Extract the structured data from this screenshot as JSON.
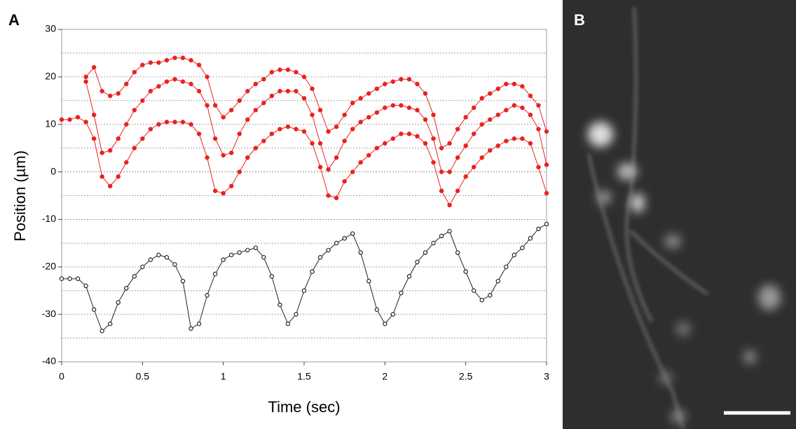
{
  "chart_data": {
    "type": "line",
    "panel_labels": [
      "A",
      "B"
    ],
    "xlabel": "Time (sec)",
    "ylabel": "Position (µm)",
    "x": [
      0,
      0.05,
      0.1,
      0.15,
      0.2,
      0.25,
      0.3,
      0.35,
      0.4,
      0.45,
      0.5,
      0.55,
      0.6,
      0.65,
      0.7,
      0.75,
      0.8,
      0.85,
      0.9,
      0.95,
      1,
      1.05,
      1.1,
      1.15,
      1.2,
      1.25,
      1.3,
      1.35,
      1.4,
      1.45,
      1.5,
      1.55,
      1.6,
      1.65,
      1.7,
      1.75,
      1.8,
      1.85,
      1.9,
      1.95,
      2,
      2.05,
      2.1,
      2.15,
      2.2,
      2.25,
      2.3,
      2.35,
      2.4,
      2.45,
      2.5,
      2.55,
      2.6,
      2.65,
      2.7,
      2.75,
      2.8,
      2.85,
      2.9,
      2.95,
      3
    ],
    "series": [
      {
        "color": "#e8231f",
        "marker": "filled",
        "values": [
          null,
          null,
          null,
          20,
          22,
          17,
          16,
          16.5,
          18.5,
          21,
          22.5,
          23,
          23,
          23.5,
          24,
          24,
          23.5,
          22.5,
          20,
          14,
          11.5,
          13,
          15,
          17,
          18.5,
          19.5,
          21,
          21.5,
          21.5,
          21,
          20,
          17.5,
          13,
          8.5,
          9.5,
          12,
          14.5,
          15.5,
          16.5,
          17.5,
          18.5,
          19,
          19.5,
          19.5,
          18.5,
          16.5,
          12,
          5,
          6,
          9,
          11.5,
          13.5,
          15.5,
          16.5,
          17.5,
          18.5,
          18.5,
          18,
          16,
          14,
          8.5
        ]
      },
      {
        "color": "#e8231f",
        "marker": "filled",
        "values": [
          null,
          null,
          null,
          19,
          12,
          4,
          4.5,
          7,
          10,
          13,
          15,
          17,
          18,
          19,
          19.5,
          19,
          18.5,
          17,
          14,
          7,
          3.5,
          4,
          8,
          11,
          13,
          14.5,
          16,
          17,
          17,
          17,
          15.5,
          12,
          6,
          0.5,
          3,
          6.5,
          9,
          10.5,
          11.5,
          12.5,
          13.5,
          14,
          14,
          13.5,
          13,
          11,
          7,
          0,
          0,
          3,
          5.5,
          8,
          10,
          11,
          12,
          13,
          14,
          13.5,
          12,
          9,
          1.5
        ]
      },
      {
        "color": "#e8231f",
        "marker": "filled",
        "values": [
          11,
          11,
          11.5,
          10.5,
          7,
          -1,
          -3,
          -1,
          2,
          5,
          7,
          9,
          10,
          10.5,
          10.5,
          10.5,
          10,
          8,
          3,
          -4,
          -4.5,
          -3,
          0,
          3,
          5,
          6.5,
          8,
          9,
          9.5,
          9,
          8.5,
          6,
          1,
          -5,
          -5.5,
          -2,
          0,
          2,
          3.5,
          5,
          6,
          7,
          8,
          8,
          7.5,
          6,
          2,
          -4,
          -7,
          -4,
          -1,
          1,
          3,
          4.5,
          5.5,
          6.5,
          7,
          7,
          6,
          1,
          -4.5
        ]
      },
      {
        "color": "#222222",
        "marker": "open",
        "values": [
          -22.5,
          -22.5,
          -22.5,
          -24,
          -29,
          -33.5,
          -32,
          -27.5,
          -24.5,
          -22,
          -20,
          -18.5,
          -17.5,
          -18,
          -19.5,
          -23,
          -33,
          -32,
          -26,
          -21.5,
          -18.5,
          -17.5,
          -17,
          -16.5,
          -16,
          -18,
          -22,
          -28,
          -32,
          -30,
          -25,
          -21,
          -18,
          -16.5,
          -15,
          -14,
          -13,
          -17,
          -23,
          -29,
          -32,
          -30,
          -25.5,
          -22,
          -19,
          -17,
          -15,
          -13.5,
          -12.5,
          -17,
          -21,
          -25,
          -27,
          -26,
          -23,
          -20,
          -17.5,
          -16,
          -14,
          -12,
          -11
        ]
      }
    ],
    "xlim": [
      0,
      3
    ],
    "xticks": [
      0,
      0.5,
      1,
      1.5,
      2,
      2.5,
      3
    ],
    "ylim": [
      -40,
      30
    ],
    "yticks": [
      -40,
      -30,
      -20,
      -10,
      0,
      10,
      20,
      30
    ],
    "grid_lines": [
      -35,
      -30,
      -25,
      -20,
      -15,
      -10,
      -5,
      0,
      5,
      10,
      15,
      20,
      25
    ]
  }
}
